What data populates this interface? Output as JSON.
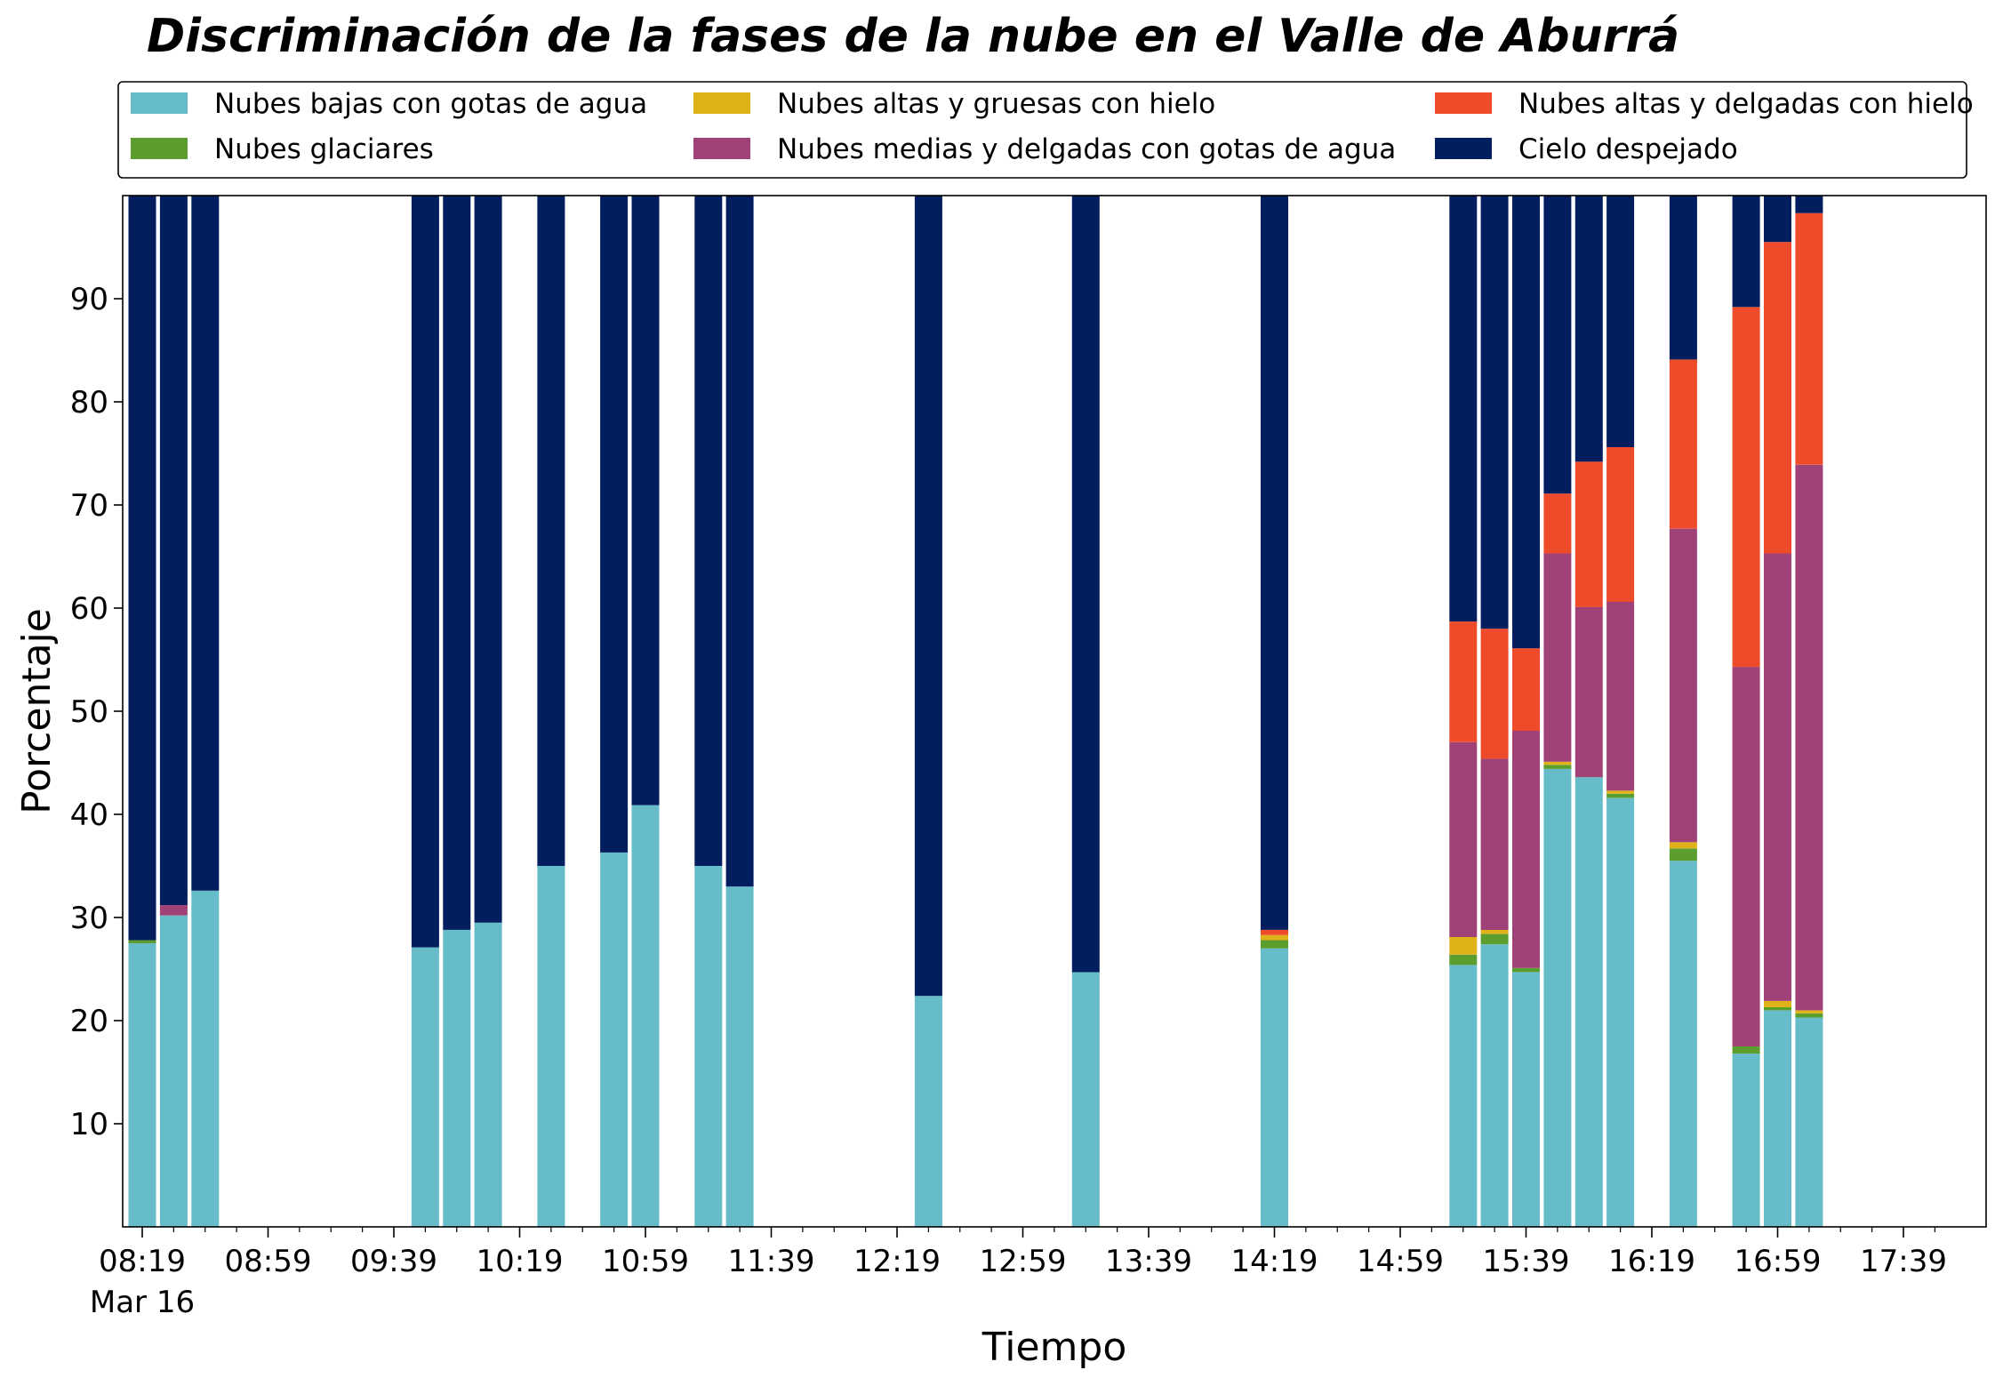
{
  "chart_data": {
    "type": "bar",
    "stacked": true,
    "title": "Discriminación de la fases de la nube en el Valle de Aburrá",
    "xlabel": "Tiempo",
    "ylabel": "Porcentaje",
    "ylim": [
      0,
      100
    ],
    "yticks": [
      10,
      20,
      30,
      40,
      50,
      60,
      70,
      80,
      90
    ],
    "x_tick_labels": [
      "08:19",
      "08:59",
      "09:39",
      "10:19",
      "10:59",
      "11:39",
      "12:19",
      "12:59",
      "13:39",
      "14:19",
      "14:59",
      "15:39",
      "16:19",
      "16:59",
      "17:39"
    ],
    "x_date_label": "Mar 16",
    "grid": false,
    "legend_position": "top",
    "categories": [
      "08:19",
      "08:29",
      "08:39",
      "09:49",
      "09:59",
      "10:09",
      "10:29",
      "10:49",
      "10:59",
      "11:19",
      "11:29",
      "12:29",
      "13:19",
      "14:19",
      "15:19",
      "15:29",
      "15:39",
      "15:49",
      "15:59",
      "16:09",
      "16:29",
      "16:49",
      "16:59",
      "17:09"
    ],
    "series": [
      {
        "name": "Nubes bajas con gotas de agua",
        "color": "#66bcc9",
        "values": [
          27.5,
          30.2,
          32.6,
          27.1,
          28.8,
          29.5,
          35.0,
          36.3,
          40.9,
          35.0,
          33.0,
          22.4,
          24.7,
          27.0,
          25.4,
          27.4,
          24.7,
          44.4,
          43.6,
          41.6,
          35.5,
          16.8,
          21.0,
          20.3
        ]
      },
      {
        "name": "Nubes glaciares",
        "color": "#5c9e2e",
        "values": [
          0.3,
          0,
          0,
          0,
          0,
          0,
          0,
          0,
          0,
          0,
          0,
          0,
          0,
          0.8,
          1.0,
          1.0,
          0.4,
          0.4,
          0,
          0.4,
          1.2,
          0.7,
          0.3,
          0.4
        ]
      },
      {
        "name": "Nubes altas y gruesas con hielo",
        "color": "#e0b21a",
        "values": [
          0,
          0,
          0,
          0,
          0,
          0,
          0,
          0,
          0,
          0,
          0,
          0,
          0,
          0.5,
          1.7,
          0.4,
          0,
          0.3,
          0,
          0.3,
          0.6,
          0,
          0.6,
          0.3
        ]
      },
      {
        "name": "Nubes medias y delgadas con gotas de agua",
        "color": "#a04277",
        "values": [
          0,
          1.0,
          0,
          0,
          0,
          0,
          0,
          0,
          0,
          0,
          0,
          0,
          0,
          0,
          18.9,
          16.6,
          23.0,
          20.2,
          16.5,
          18.3,
          30.4,
          36.8,
          43.4,
          52.9
        ]
      },
      {
        "name": "Nubes altas y delgadas con hielo",
        "color": "#ee4b2b",
        "values": [
          0,
          0,
          0,
          0,
          0,
          0,
          0,
          0,
          0,
          0,
          0,
          0,
          0,
          0.5,
          11.7,
          12.6,
          8.0,
          5.8,
          14.1,
          15.0,
          16.4,
          34.9,
          30.2,
          24.4
        ]
      },
      {
        "name": "Cielo despejado",
        "color": "#021e5e",
        "values": [
          72.2,
          68.8,
          67.4,
          72.9,
          71.2,
          70.5,
          65.0,
          63.7,
          59.1,
          65.0,
          67.0,
          77.6,
          75.3,
          71.2,
          41.3,
          42.0,
          43.9,
          28.9,
          25.8,
          24.4,
          15.9,
          10.8,
          4.5,
          1.7
        ]
      }
    ]
  }
}
